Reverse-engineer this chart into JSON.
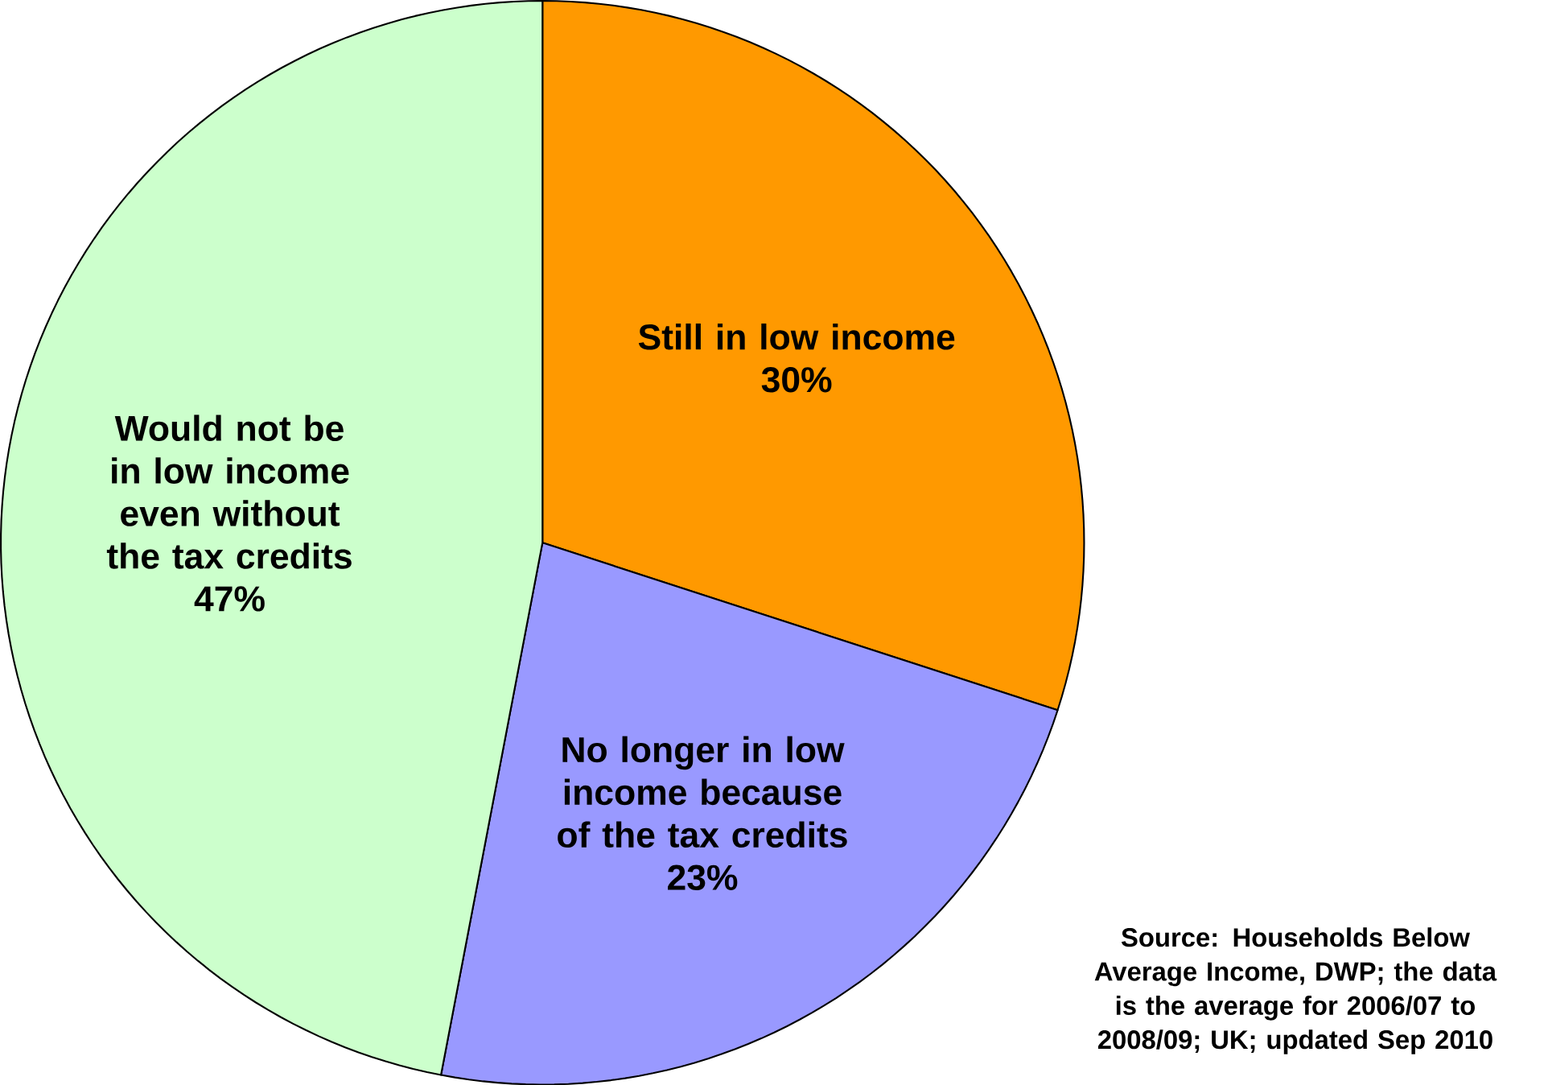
{
  "chart_data": {
    "type": "pie",
    "categories": [
      "Still in low income",
      "No longer in low income because of the tax credits",
      "Would not be in low income even without the tax credits"
    ],
    "values": [
      30,
      23,
      47
    ],
    "colors": [
      "#ff9900",
      "#9999ff",
      "#ccffcc"
    ],
    "value_labels": [
      "30%",
      "23%",
      "47%"
    ],
    "annotations": [
      "Source: Households Below Average Income, DWP; the data is the average for 2006/07 to 2008/09; UK; updated Sep 2010"
    ]
  }
}
